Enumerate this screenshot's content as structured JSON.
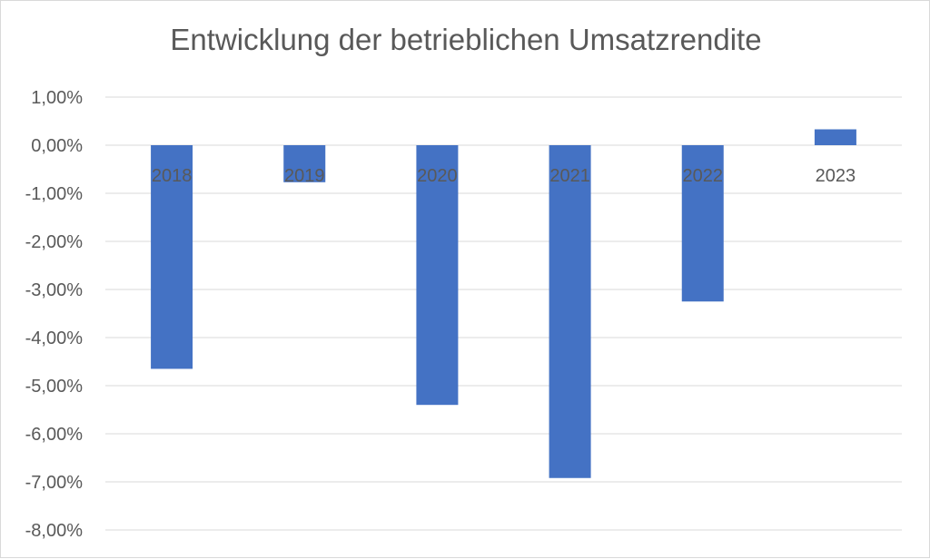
{
  "chart_data": {
    "type": "bar",
    "title": "Entwicklung der betrieblichen Umsatzrendite",
    "categories": [
      "2018",
      "2019",
      "2020",
      "2021",
      "2022",
      "2023"
    ],
    "series": [
      {
        "values": [
          -4.65,
          -0.77,
          -5.4,
          -6.92,
          -3.25,
          0.33
        ]
      }
    ],
    "yticks": [
      "1,00%",
      "0,00%",
      "-1,00%",
      "-2,00%",
      "-3,00%",
      "-4,00%",
      "-5,00%",
      "-6,00%",
      "-7,00%",
      "-8,00%"
    ],
    "ylim": [
      -8,
      1
    ],
    "grid": true,
    "bar_color": "#4472c4",
    "gridline_color": "#d9d9d9"
  }
}
